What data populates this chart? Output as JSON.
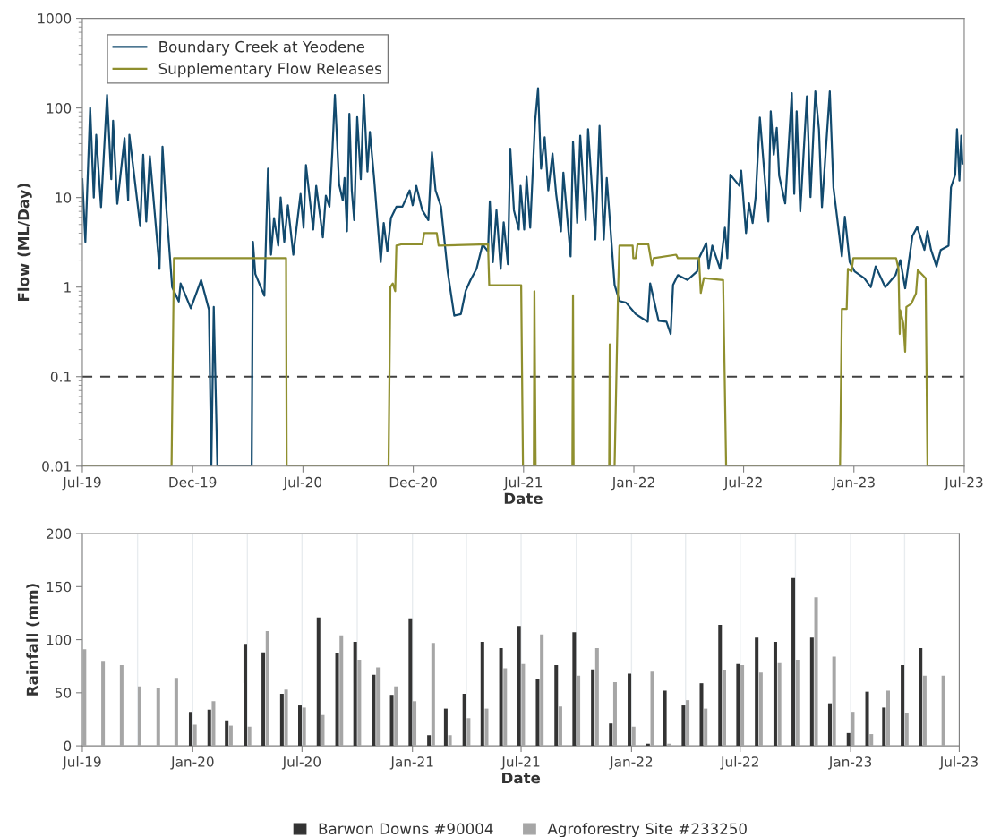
{
  "chart_data": [
    {
      "type": "line",
      "xlabel": "Date",
      "ylabel": "Flow (ML/Day)",
      "log": "y",
      "legend": "top left",
      "marker": "none",
      "line_style": "solid",
      "xlim": [
        "2019-07-01",
        "2023-07-03"
      ],
      "xticks": [
        {
          "value": "2019-07-01",
          "label": "Jul-19"
        },
        {
          "value": "2019-12-31",
          "label": "Dec-19"
        },
        {
          "value": "2020-07-01",
          "label": "Jul-20"
        },
        {
          "value": "2020-12-31",
          "label": "Dec-20"
        },
        {
          "value": "2021-07-02",
          "label": "Jul-21"
        },
        {
          "value": "2022-01-01",
          "label": "Jan-22"
        },
        {
          "value": "2022-07-02",
          "label": "Jul-22"
        },
        {
          "value": "2023-01-01",
          "label": "Jan-23"
        },
        {
          "value": "2023-07-03",
          "label": "Jul-23"
        }
      ],
      "ylim": [
        0.01,
        1000
      ],
      "yticks": [
        0.01,
        0.1,
        1,
        10,
        100,
        1000
      ],
      "ref_lines": [
        {
          "axis": "y",
          "value": 0.1,
          "color": "#404040",
          "line_style": "dashed"
        }
      ],
      "series": [
        {
          "name": "Boundary Creek at Yeodene",
          "color": "#124a6e",
          "x": [
            "2019-07-01",
            "2019-07-06",
            "2019-07-14",
            "2019-07-20",
            "2019-07-24",
            "2019-08-01",
            "2019-08-11",
            "2019-08-18",
            "2019-08-21",
            "2019-08-28",
            "2019-09-09",
            "2019-09-15",
            "2019-09-17",
            "2019-10-05",
            "2019-10-10",
            "2019-10-15",
            "2019-10-21",
            "2019-11-06",
            "2019-11-11",
            "2019-11-16",
            "2019-11-27",
            "2019-12-08",
            "2019-12-11",
            "2019-12-28",
            "2020-01-14",
            "2020-01-27",
            "2020-01-31",
            "2020-02-04",
            "2020-02-10",
            "2020-04-07",
            "2020-04-09",
            "2020-04-13",
            "2020-04-28",
            "2020-05-04",
            "2020-05-09",
            "2020-05-14",
            "2020-05-21",
            "2020-05-25",
            "2020-05-31",
            "2020-06-06",
            "2020-06-15",
            "2020-06-27",
            "2020-07-02",
            "2020-07-06",
            "2020-07-18",
            "2020-07-23",
            "2020-08-03",
            "2020-08-08",
            "2020-08-14",
            "2020-08-19",
            "2020-08-23",
            "2020-08-30",
            "2020-09-05",
            "2020-09-08",
            "2020-09-12",
            "2020-09-16",
            "2020-09-20",
            "2020-09-24",
            "2020-09-29",
            "2020-10-05",
            "2020-10-10",
            "2020-10-16",
            "2020-10-20",
            "2020-10-27",
            "2020-11-07",
            "2020-11-12",
            "2020-11-18",
            "2020-11-24",
            "2020-12-03",
            "2020-12-13",
            "2020-12-25",
            "2020-12-30",
            "2021-01-05",
            "2021-01-15",
            "2021-01-25",
            "2021-01-31",
            "2021-02-06",
            "2021-02-15",
            "2021-02-26",
            "2021-03-09",
            "2021-03-20",
            "2021-03-28",
            "2021-04-05",
            "2021-04-15",
            "2021-04-25",
            "2021-05-04",
            "2021-05-07",
            "2021-05-12",
            "2021-05-18",
            "2021-05-25",
            "2021-05-30",
            "2021-06-06",
            "2021-06-10",
            "2021-06-16",
            "2021-06-24",
            "2021-06-27",
            "2021-07-03",
            "2021-07-07",
            "2021-07-13",
            "2021-07-21",
            "2021-07-26",
            "2021-07-31",
            "2021-08-06",
            "2021-08-12",
            "2021-08-19",
            "2021-08-25",
            "2021-09-02",
            "2021-09-06",
            "2021-09-18",
            "2021-09-22",
            "2021-09-29",
            "2021-10-04",
            "2021-10-13",
            "2021-10-17",
            "2021-10-29",
            "2021-11-05",
            "2021-11-12",
            "2021-11-17",
            "2021-11-30",
            "2021-12-08",
            "2021-12-19",
            "2022-01-04",
            "2022-01-24",
            "2022-01-28",
            "2022-02-11",
            "2022-02-24",
            "2022-03-03",
            "2022-03-07",
            "2022-03-15",
            "2022-03-31",
            "2022-04-16",
            "2022-04-19",
            "2022-05-01",
            "2022-05-05",
            "2022-05-11",
            "2022-05-24",
            "2022-06-01",
            "2022-06-05",
            "2022-06-10",
            "2022-06-25",
            "2022-06-28",
            "2022-07-06",
            "2022-07-11",
            "2022-07-17",
            "2022-07-22",
            "2022-07-29",
            "2022-08-12",
            "2022-08-16",
            "2022-08-21",
            "2022-08-26",
            "2022-08-30",
            "2022-09-09",
            "2022-09-20",
            "2022-09-24",
            "2022-09-28",
            "2022-10-04",
            "2022-10-15",
            "2022-10-21",
            "2022-10-29",
            "2022-11-04",
            "2022-11-09",
            "2022-11-22",
            "2022-11-28",
            "2022-12-12",
            "2022-12-17",
            "2022-12-25",
            "2023-01-02",
            "2023-01-18",
            "2023-01-29",
            "2023-02-06",
            "2023-02-22",
            "2023-03-11",
            "2023-03-19",
            "2023-03-27",
            "2023-04-08",
            "2023-04-16",
            "2023-04-28",
            "2023-05-03",
            "2023-05-09",
            "2023-05-18",
            "2023-05-25",
            "2023-06-07",
            "2023-06-11",
            "2023-06-18",
            "2023-06-21",
            "2023-06-25",
            "2023-06-28",
            "2023-06-30"
          ],
          "values": [
            16,
            3.2,
            100,
            10,
            50,
            7.8,
            140,
            16,
            72,
            8.5,
            46,
            9.3,
            50,
            4.8,
            30,
            5.4,
            29,
            1.6,
            37,
            10,
            1.0,
            0.69,
            1.1,
            0.58,
            1.2,
            0.56,
            0.01,
            0.6,
            0.01,
            0.01,
            3.2,
            1.4,
            0.8,
            21,
            2.3,
            5.9,
            2.9,
            10,
            3.2,
            8.2,
            2.3,
            11,
            4.6,
            23,
            4.4,
            13.5,
            3.6,
            10.5,
            7.9,
            35,
            140,
            14,
            9.3,
            16.5,
            4.2,
            86,
            12,
            5.6,
            79,
            16,
            140,
            19.5,
            54,
            16.5,
            1.9,
            5.2,
            2.5,
            5.9,
            7.9,
            7.9,
            12,
            8.2,
            13.5,
            7.2,
            5.6,
            32,
            12,
            7.9,
            1.5,
            0.48,
            0.5,
            0.91,
            1.2,
            1.6,
            3.0,
            2.5,
            9.1,
            1.9,
            7.2,
            1.6,
            5.3,
            1.8,
            35,
            7.2,
            4.4,
            13.5,
            4.4,
            17,
            4.6,
            69,
            166,
            21,
            47,
            12,
            31,
            11,
            4.2,
            19,
            2.2,
            42,
            5.2,
            49,
            5.6,
            58,
            3.4,
            63,
            3.4,
            16.5,
            1.06,
            0.7,
            0.67,
            0.5,
            0.41,
            1.1,
            0.42,
            0.41,
            0.3,
            1.06,
            1.36,
            1.2,
            1.5,
            2.1,
            3.1,
            1.6,
            2.9,
            1.6,
            4.6,
            2.1,
            18,
            13.5,
            20,
            4.0,
            8.6,
            5.2,
            10.1,
            78,
            5.4,
            92,
            30,
            60,
            17.5,
            8.6,
            146,
            11,
            92,
            7.0,
            135,
            10.1,
            153,
            58,
            7.8,
            153,
            13,
            2.2,
            6.1,
            1.9,
            1.5,
            1.26,
            1.0,
            1.7,
            1.0,
            1.36,
            2.0,
            0.97,
            3.7,
            4.7,
            2.6,
            4.2,
            2.6,
            1.7,
            2.6,
            2.9,
            13,
            18,
            58,
            15.5,
            49,
            24
          ]
        },
        {
          "name": "Supplementary Flow Releases",
          "color": "#8f8f2e",
          "x": [
            "2019-07-01",
            "2019-11-26",
            "2019-11-30",
            "2020-06-03",
            "2020-06-04",
            "2020-11-20",
            "2020-11-23",
            "2020-11-27",
            "2020-12-01",
            "2020-12-03",
            "2020-12-11",
            "2021-01-15",
            "2021-01-18",
            "2021-02-08",
            "2021-02-11",
            "2021-05-04",
            "2021-05-06",
            "2021-06-28",
            "2021-07-01",
            "2021-07-19",
            "2021-07-20",
            "2021-07-22",
            "2021-09-21",
            "2021-09-22",
            "2021-09-23",
            "2021-11-21",
            "2021-11-22",
            "2021-11-23",
            "2021-11-30",
            "2021-12-06",
            "2021-12-08",
            "2021-12-30",
            "2021-12-31",
            "2022-01-04",
            "2022-01-07",
            "2022-01-25",
            "2022-01-31",
            "2022-02-03",
            "2022-03-12",
            "2022-03-15",
            "2022-04-19",
            "2022-04-22",
            "2022-04-27",
            "2022-05-29",
            "2022-06-03",
            "2022-12-09",
            "2022-12-12",
            "2022-12-20",
            "2022-12-22",
            "2022-12-28",
            "2022-12-31",
            "2023-03-12",
            "2023-03-16",
            "2023-03-18",
            "2023-03-19",
            "2023-03-24",
            "2023-03-27",
            "2023-03-29",
            "2023-04-06",
            "2023-04-14",
            "2023-04-17",
            "2023-04-30",
            "2023-05-03",
            "2023-07-01"
          ],
          "values": [
            0.01,
            0.01,
            2.1,
            2.1,
            0.01,
            0.01,
            1.0,
            1.1,
            0.9,
            2.9,
            3.0,
            3.0,
            4.0,
            4.0,
            2.9,
            3.0,
            1.05,
            1.05,
            0.01,
            0.01,
            0.9,
            0.01,
            0.01,
            0.81,
            0.01,
            0.01,
            0.23,
            0.01,
            0.01,
            1.05,
            2.9,
            2.9,
            2.1,
            2.1,
            3.0,
            3.0,
            1.75,
            2.1,
            2.3,
            2.1,
            2.1,
            0.86,
            1.26,
            1.2,
            0.01,
            0.01,
            0.57,
            0.57,
            1.6,
            1.5,
            2.1,
            2.1,
            1.6,
            0.3,
            0.55,
            0.39,
            0.19,
            0.6,
            0.65,
            0.85,
            1.55,
            1.26,
            0.01,
            0.01
          ]
        }
      ]
    },
    {
      "type": "bar",
      "xlabel": "Date",
      "ylabel": "Rainfall (mm)",
      "legend": "bottom",
      "grid": "x",
      "xlim": [
        "2019-07-01",
        "2023-07-01"
      ],
      "xticks": [
        {
          "value": "2019-07-01",
          "label": "Jul-19"
        },
        {
          "value": "2019-10-01",
          "label": null
        },
        {
          "value": "2020-01-01",
          "label": "Jan-20"
        },
        {
          "value": "2020-04-01",
          "label": null
        },
        {
          "value": "2020-07-01",
          "label": "Jul-20"
        },
        {
          "value": "2020-10-01",
          "label": null
        },
        {
          "value": "2021-01-01",
          "label": "Jan-21"
        },
        {
          "value": "2021-04-01",
          "label": null
        },
        {
          "value": "2021-07-01",
          "label": "Jul-21"
        },
        {
          "value": "2021-10-01",
          "label": null
        },
        {
          "value": "2022-01-01",
          "label": "Jan-22"
        },
        {
          "value": "2022-04-01",
          "label": null
        },
        {
          "value": "2022-07-01",
          "label": "Jul-22"
        },
        {
          "value": "2022-10-01",
          "label": null
        },
        {
          "value": "2023-01-01",
          "label": "Jan-23"
        },
        {
          "value": "2023-04-01",
          "label": null
        },
        {
          "value": "2023-07-01",
          "label": "Jul-23"
        }
      ],
      "ylim": [
        0,
        200
      ],
      "yticks": [
        0,
        50,
        100,
        150,
        200
      ],
      "x": [
        "2019-07",
        "2019-08",
        "2019-09",
        "2019-10",
        "2019-11",
        "2019-12",
        "2020-01",
        "2020-02",
        "2020-03",
        "2020-04",
        "2020-05",
        "2020-06",
        "2020-07",
        "2020-08",
        "2020-09",
        "2020-10",
        "2020-11",
        "2020-12",
        "2021-01",
        "2021-02",
        "2021-03",
        "2021-04",
        "2021-05",
        "2021-06",
        "2021-07",
        "2021-08",
        "2021-09",
        "2021-10",
        "2021-11",
        "2021-12",
        "2022-01",
        "2022-02",
        "2022-03",
        "2022-04",
        "2022-05",
        "2022-06",
        "2022-07",
        "2022-08",
        "2022-09",
        "2022-10",
        "2022-11",
        "2022-12",
        "2023-01",
        "2023-02",
        "2023-03",
        "2023-04",
        "2023-05",
        "2023-06"
      ],
      "series": [
        {
          "name": "Barwon Downs #90004",
          "color": "#333333",
          "values": [
            null,
            null,
            null,
            null,
            null,
            null,
            32,
            34,
            24,
            96,
            88,
            49,
            38,
            121,
            87,
            98,
            67,
            48,
            120,
            10,
            35,
            49,
            98,
            92,
            113,
            63,
            76,
            107,
            72,
            21,
            68,
            2,
            52,
            38,
            59,
            114,
            77,
            102,
            98,
            158,
            102,
            40,
            12,
            51,
            36,
            76,
            92,
            null
          ]
        },
        {
          "name": "Agroforestry Site #233250",
          "color": "#a6a6a6",
          "values": [
            91,
            80,
            76,
            56,
            55,
            64,
            20,
            42,
            19,
            18,
            108,
            53,
            36,
            29,
            104,
            81,
            74,
            56,
            42,
            97,
            10,
            26,
            35,
            73,
            77,
            105,
            37,
            66,
            92,
            60,
            18,
            70,
            2,
            43,
            35,
            71,
            76,
            69,
            78,
            81,
            140,
            84,
            32,
            11,
            52,
            31,
            66,
            66
          ]
        }
      ]
    }
  ]
}
